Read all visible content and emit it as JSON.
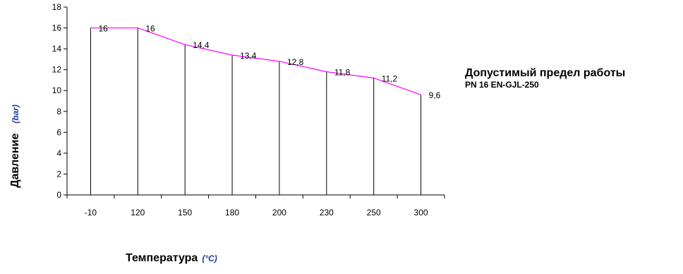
{
  "chart_data": {
    "type": "area",
    "categories": [
      "-10",
      "120",
      "150",
      "180",
      "200",
      "230",
      "250",
      "300"
    ],
    "series": [
      {
        "values": [
          16,
          16,
          14.4,
          13.4,
          12.8,
          11.8,
          11.2,
          9.6
        ]
      }
    ],
    "data_labels": [
      "16",
      "16",
      "14,4",
      "13,4",
      "12,8",
      "11,8",
      "11,2",
      "9,6"
    ],
    "ylim": [
      0,
      18
    ],
    "yticks": [
      0,
      2,
      4,
      6,
      8,
      10,
      12,
      14,
      16,
      18
    ],
    "xlabel": "Температура",
    "xlabel_unit": "(°C)",
    "ylabel": "Давление",
    "ylabel_unit": "(bar)",
    "grid": false,
    "line_color": "#ff00ff",
    "drop_line_color": "#000000"
  },
  "annotation": {
    "title": "Допустимый предел работы",
    "subtitle": "PN 16 EN-GJL-250"
  }
}
